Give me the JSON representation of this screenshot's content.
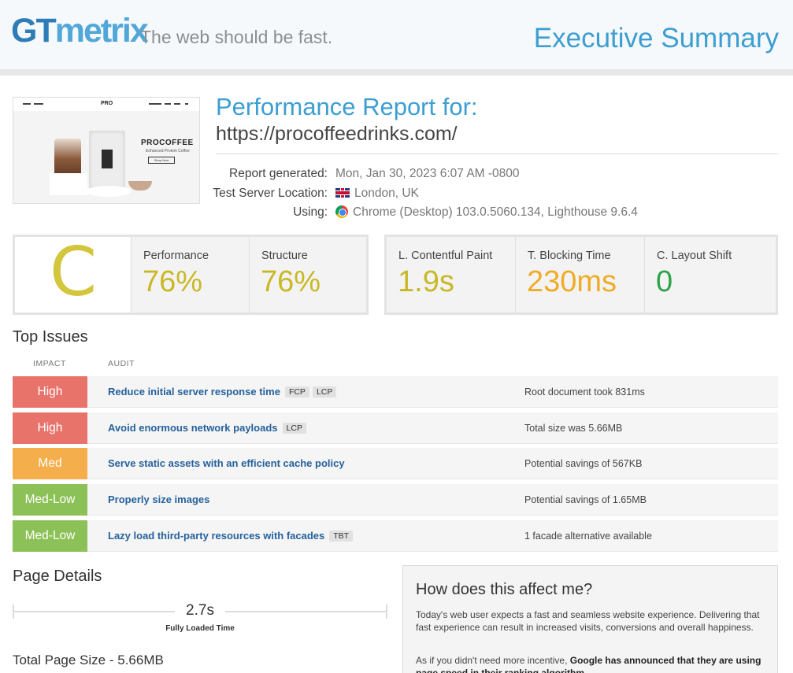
{
  "header": {
    "logo_gt": "GT",
    "logo_metrix": "metrix",
    "tagline": "The web should be fast.",
    "title": "Executive Summary"
  },
  "thumbnail": {
    "brand_logo": "PRO",
    "hero_brand": "PROCOFFEE",
    "hero_sub": "Enhanced Protein Coffee",
    "hero_button": "Shop Now"
  },
  "report": {
    "title": "Performance Report for:",
    "url": "https://procoffeedrinks.com/",
    "meta": [
      {
        "label": "Report generated:",
        "value": "Mon, Jan 30, 2023 6:07 AM -0800",
        "icon": ""
      },
      {
        "label": "Test Server Location:",
        "value": "London, UK",
        "icon": "uk-flag-icon"
      },
      {
        "label": "Using:",
        "value": "Chrome (Desktop) 103.0.5060.134, Lighthouse 9.6.4",
        "icon": "chrome-icon"
      }
    ]
  },
  "scores": {
    "grade": "C",
    "grade_color": "#d3c63c",
    "performance": {
      "label": "Performance",
      "value": "76%"
    },
    "structure": {
      "label": "Structure",
      "value": "76%"
    },
    "lcp": {
      "label": "L. Contentful Paint",
      "value": "1.9s"
    },
    "tbt": {
      "label": "T. Blocking Time",
      "value": "230ms"
    },
    "cls": {
      "label": "C. Layout Shift",
      "value": "0"
    }
  },
  "top_issues": {
    "title": "Top Issues",
    "col_impact": "IMPACT",
    "col_audit": "AUDIT",
    "rows": [
      {
        "impact": "High",
        "audit": "Reduce initial server response time",
        "tags": [
          "FCP",
          "LCP"
        ],
        "result": "Root document took 831ms"
      },
      {
        "impact": "High",
        "audit": "Avoid enormous network payloads",
        "tags": [
          "LCP"
        ],
        "result": "Total size was 5.66MB"
      },
      {
        "impact": "Med",
        "audit": "Serve static assets with an efficient cache policy",
        "tags": [],
        "result": "Potential savings of 567KB"
      },
      {
        "impact": "Med-Low",
        "audit": "Properly size images",
        "tags": [],
        "result": "Potential savings of 1.65MB"
      },
      {
        "impact": "Med-Low",
        "audit": "Lazy load third-party resources with facades",
        "tags": [
          "TBT"
        ],
        "result": "1 facade alternative available"
      }
    ]
  },
  "page_details": {
    "title": "Page Details",
    "fully_loaded_value": "2.7s",
    "fully_loaded_label": "Fully Loaded Time",
    "total_size": "Total Page Size - 5.66MB"
  },
  "affect": {
    "title": "How does this affect me?",
    "p1": "Today's web user expects a fast and seamless website experience. Delivering that fast experience can result in increased visits, conversions and overall happiness.",
    "p2_prefix": "As if you didn't need more incentive, ",
    "p2_bold": "Google has announced that they are using page speed in their ranking algorithm."
  },
  "colors": {
    "brand_blue": "#3d9ed2",
    "impact_high": "#e8736b",
    "impact_med": "#f5ae4c",
    "impact_medlow": "#8cc157",
    "score_yellow": "#c9b825",
    "score_orange": "#f0ab27",
    "score_green": "#2ea34b"
  }
}
